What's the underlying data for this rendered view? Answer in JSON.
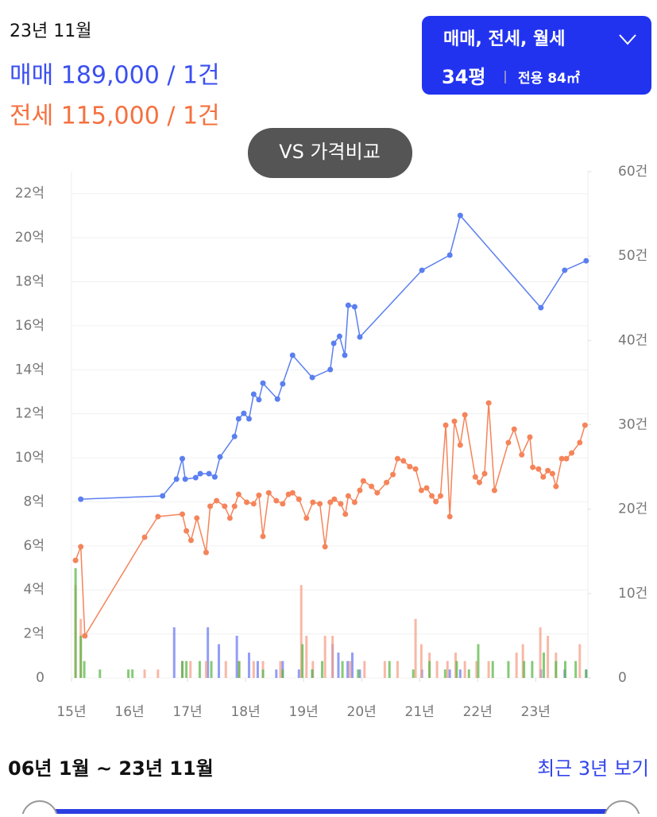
{
  "header": {
    "date": "23년 11월",
    "sale": "매매 189,000 / 1건",
    "jeonse": "전세 115,000 / 1건",
    "filter": "매매, 전세, 월세",
    "size": "34평",
    "area": "전용 84㎡",
    "compare": "VS 가격비교"
  },
  "footer": {
    "range": "06년 1월 ~ 23년 11월",
    "recent": "최근 3년 보기"
  },
  "chart_data": {
    "type": "line",
    "grid": true,
    "xlim": [
      15,
      23.9
    ],
    "xticks": [
      {
        "value": 15,
        "label": "15년"
      },
      {
        "value": 16,
        "label": "16년"
      },
      {
        "value": 17,
        "label": "17년"
      },
      {
        "value": 18,
        "label": "18년"
      },
      {
        "value": 19,
        "label": "19년"
      },
      {
        "value": 20,
        "label": "20년"
      },
      {
        "value": 21,
        "label": "21년"
      },
      {
        "value": 22,
        "label": "22년"
      },
      {
        "value": 23,
        "label": "23년"
      }
    ],
    "ylim": [
      0,
      23
    ],
    "yticks": [
      0,
      {
        "value": 2,
        "label": "2억"
      },
      {
        "value": 4,
        "label": "4억"
      },
      {
        "value": 6,
        "label": "6억"
      },
      {
        "value": 8,
        "label": "8억"
      },
      {
        "value": 10,
        "label": "10억"
      },
      {
        "value": 12,
        "label": "12억"
      },
      {
        "value": 14,
        "label": "14억"
      },
      {
        "value": 16,
        "label": "16억"
      },
      {
        "value": 18,
        "label": "18억"
      },
      {
        "value": 20,
        "label": "20억"
      },
      {
        "value": 22,
        "label": "22억"
      }
    ],
    "y2lim": [
      0,
      60
    ],
    "y2ticks": [
      0,
      {
        "value": 10,
        "label": "10건"
      },
      {
        "value": 20,
        "label": "20건"
      },
      {
        "value": 30,
        "label": "30건"
      },
      {
        "value": 40,
        "label": "40건"
      },
      {
        "value": 50,
        "label": "50건"
      },
      {
        "value": 60,
        "label": "60건"
      }
    ],
    "series": [
      {
        "type": "line",
        "color": "#5b7ff0",
        "x": [
          15.16,
          16.57,
          16.81,
          16.91,
          16.96,
          17.14,
          17.22,
          17.37,
          17.47,
          17.56,
          17.81,
          17.88,
          17.97,
          18.06,
          18.14,
          18.23,
          18.3,
          18.55,
          18.64,
          18.81,
          19.15,
          19.46,
          19.52,
          19.62,
          19.71,
          19.77,
          19.88,
          19.97,
          21.04,
          21.52,
          21.7,
          23.09,
          23.5,
          23.87
        ],
        "values": [
          8.12,
          8.27,
          9.03,
          9.96,
          9.03,
          9.1,
          9.28,
          9.28,
          9.13,
          10.04,
          10.97,
          11.77,
          12.02,
          11.77,
          12.89,
          12.64,
          13.39,
          12.67,
          13.36,
          14.66,
          13.65,
          14.01,
          15.2,
          15.52,
          14.66,
          16.93,
          16.86,
          15.49,
          18.52,
          19.21,
          21.01,
          16.82,
          18.52,
          18.95
        ]
      },
      {
        "type": "line",
        "color": "#f5845a",
        "x": [
          15.07,
          15.16,
          15.23,
          16.26,
          16.49,
          16.91,
          16.98,
          17.06,
          17.16,
          17.32,
          17.39,
          17.5,
          17.64,
          17.73,
          17.81,
          17.88,
          18.02,
          18.14,
          18.23,
          18.3,
          18.4,
          18.53,
          18.64,
          18.74,
          18.81,
          18.92,
          19.05,
          19.16,
          19.28,
          19.37,
          19.46,
          19.53,
          19.64,
          19.72,
          19.77,
          19.88,
          19.97,
          20.03,
          20.17,
          20.27,
          20.43,
          20.54,
          20.62,
          20.72,
          20.83,
          20.93,
          21.03,
          21.12,
          21.21,
          21.28,
          21.36,
          21.45,
          21.52,
          21.6,
          21.7,
          21.78,
          21.96,
          22.03,
          22.12,
          22.19,
          22.29,
          22.53,
          22.63,
          22.76,
          22.9,
          22.95,
          23.05,
          23.13,
          23.21,
          23.29,
          23.35,
          23.45,
          23.53,
          23.62,
          23.76,
          23.85
        ],
        "values": [
          5.34,
          5.96,
          1.91,
          6.39,
          7.33,
          7.44,
          6.68,
          6.25,
          7.26,
          5.7,
          7.8,
          8.05,
          7.8,
          7.26,
          7.8,
          8.34,
          7.98,
          7.91,
          8.3,
          6.43,
          8.41,
          8.05,
          7.91,
          8.34,
          8.41,
          8.12,
          7.26,
          7.98,
          7.91,
          5.96,
          7.98,
          8.12,
          7.91,
          7.44,
          8.27,
          7.98,
          8.52,
          8.95,
          8.7,
          8.41,
          8.88,
          9.24,
          9.96,
          9.86,
          9.6,
          9.49,
          8.52,
          8.63,
          8.27,
          8.01,
          8.27,
          11.48,
          7.33,
          11.66,
          10.58,
          11.95,
          9.13,
          8.88,
          9.28,
          12.49,
          8.52,
          10.69,
          11.3,
          10.14,
          10.94,
          9.57,
          9.49,
          9.13,
          9.42,
          9.28,
          8.7,
          9.96,
          9.96,
          10.22,
          10.69,
          11.48
        ]
      },
      {
        "type": "bar",
        "axis": "y2",
        "color": "#6d7cf2",
        "x": [
          16.77,
          16.91,
          17.35,
          17.54,
          17.85,
          18.06,
          18.21,
          18.53,
          18.64,
          18.92,
          19.15,
          19.5,
          19.6,
          19.76,
          19.84,
          19.97,
          21.04,
          21.52,
          21.7,
          23.09,
          23.5,
          23.87
        ],
        "values": [
          6,
          2,
          6,
          4,
          5,
          3,
          2,
          1,
          2,
          1,
          1,
          4,
          3,
          2,
          3,
          1,
          1,
          1,
          1,
          1,
          1,
          1
        ]
      },
      {
        "type": "bar",
        "axis": "y2",
        "color": "#f6a089",
        "x": [
          15.07,
          15.16,
          16.26,
          16.49,
          16.91,
          17.05,
          17.32,
          17.66,
          17.89,
          18.14,
          18.3,
          18.6,
          18.96,
          19.05,
          19.16,
          19.37,
          19.5,
          19.8,
          20.05,
          20.4,
          20.62,
          20.93,
          21.03,
          21.17,
          21.3,
          21.48,
          21.62,
          21.78,
          21.98,
          22.19,
          22.67,
          22.78,
          23.08,
          23.21,
          23.35,
          23.76
        ],
        "values": [
          11,
          7,
          1,
          1,
          2,
          2,
          2,
          2,
          2,
          2,
          2,
          2,
          11,
          5,
          2,
          5,
          5,
          2,
          2,
          2,
          2,
          7,
          4,
          3,
          2,
          2,
          3,
          2,
          2,
          2,
          3,
          4,
          6,
          5,
          3,
          4
        ]
      },
      {
        "type": "bar",
        "axis": "y2",
        "color": "#5cb84a",
        "x": [
          15.07,
          15.16,
          15.22,
          15.49,
          15.98,
          16.05,
          16.91,
          16.98,
          17.21,
          17.41,
          17.89,
          18.3,
          18.64,
          18.98,
          19.15,
          19.32,
          19.67,
          19.94,
          20.48,
          20.89,
          21.17,
          21.44,
          21.64,
          21.85,
          22.01,
          22.26,
          22.53,
          22.8,
          22.94,
          23.14,
          23.35,
          23.51,
          23.69,
          23.87
        ],
        "values": [
          13,
          5,
          2,
          1,
          1,
          1,
          2,
          2,
          2,
          2,
          2,
          1,
          1,
          4,
          1,
          2,
          2,
          1,
          2,
          1,
          2,
          1,
          2,
          1,
          4,
          2,
          2,
          2,
          2,
          3,
          2,
          2,
          2,
          1
        ]
      }
    ]
  }
}
